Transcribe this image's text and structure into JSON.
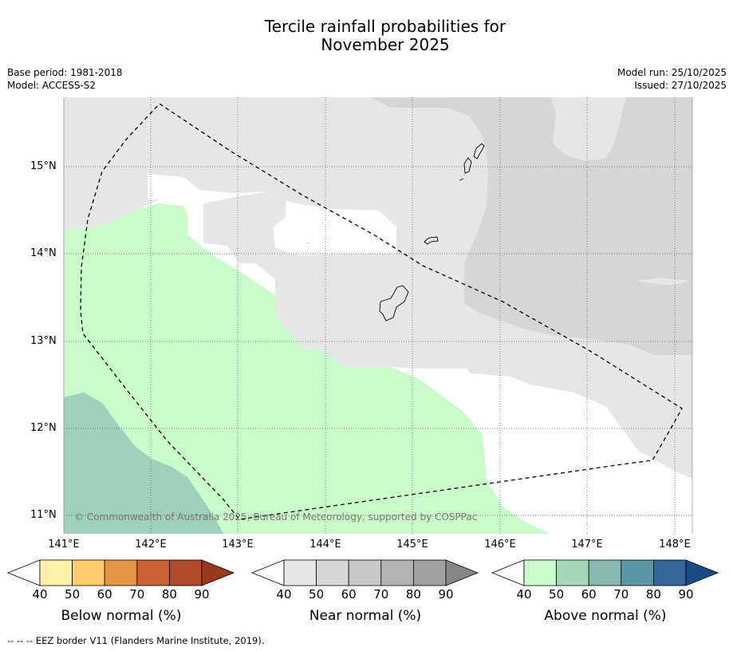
{
  "header": {
    "title_line1": "Tercile rainfall probabilities for",
    "title_line2": "November 2025",
    "base_period": "Base period: 1981-2018",
    "model": "Model: ACCESS-S2",
    "model_run": "Model run: 25/10/2025",
    "issued": "Issued: 27/10/2025"
  },
  "map": {
    "lat_labels": [
      "15°N",
      "14°N",
      "13°N",
      "12°N",
      "11°N"
    ],
    "lon_labels": [
      "141°E",
      "142°E",
      "143°E",
      "144°E",
      "145°E",
      "146°E",
      "147°E",
      "148°E"
    ],
    "copyright": "© Commonwealth of Australia 2025, Bureau of Meteorology, supported by COSPPac",
    "colors": {
      "near_40": "#e6e6e6",
      "near_50": "#d6d6d6",
      "above_40": "#c9fcca",
      "above_50": "#9fd0bc"
    }
  },
  "colorbars": {
    "ticks": [
      "40",
      "50",
      "60",
      "70",
      "80",
      "90"
    ],
    "below": {
      "label": "Below normal (%)",
      "colors": [
        "#fff0a8",
        "#fdcb67",
        "#e19545",
        "#cc6231",
        "#b04a28",
        "#97381f"
      ]
    },
    "near": {
      "label": "Near normal (%)",
      "colors": [
        "#e6e6e6",
        "#d6d6d6",
        "#c8c8c8",
        "#b3b3b3",
        "#a1a1a1",
        "#878787"
      ]
    },
    "above": {
      "label": "Above normal (%)",
      "colors": [
        "#c9fcca",
        "#a6d7bd",
        "#86b8b0",
        "#5c95a3",
        "#346797",
        "#1b4b87"
      ]
    }
  },
  "footnote": "--  --  -- EEZ border V11 (Flanders Marine Institute, 2019)."
}
